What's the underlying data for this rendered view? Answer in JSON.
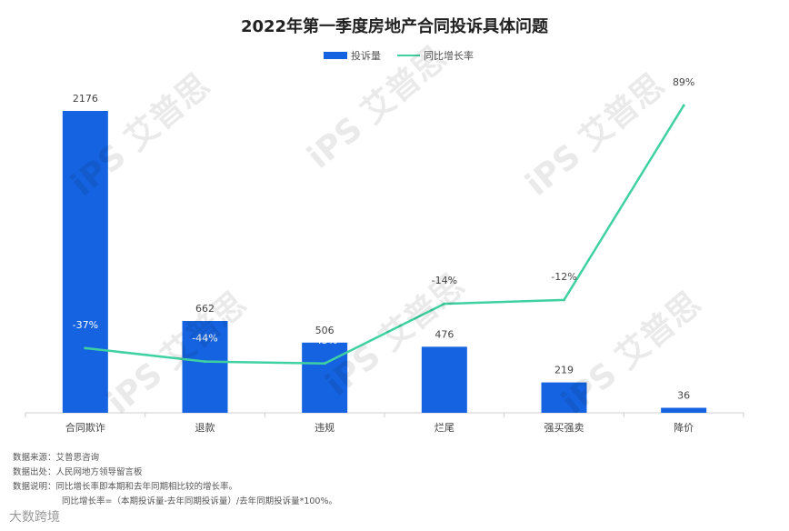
{
  "chart_data": {
    "type": "bar",
    "title": "2022年第一季度房地产合同投诉具体问题",
    "categories": [
      "合同欺诈",
      "退款",
      "违规",
      "烂尾",
      "强买强卖",
      "降价"
    ],
    "series": [
      {
        "name": "投诉量",
        "kind": "bar",
        "values": [
          2176,
          662,
          506,
          476,
          219,
          36
        ],
        "labels": [
          "2176",
          "662",
          "506",
          "476",
          "219",
          "36"
        ]
      },
      {
        "name": "同比增长率",
        "kind": "line",
        "values": [
          -37,
          -44,
          -45,
          -14,
          -12,
          89
        ],
        "labels": [
          "-37%",
          "-44%",
          "-45%",
          "-14%",
          "-12%",
          "89%"
        ]
      }
    ],
    "legend": "top-center",
    "colors": {
      "bar": "#1563e0",
      "line": "#3fd1a2"
    }
  },
  "notes": {
    "source": "数据来源：艾普思咨询",
    "origin": "数据出处：人民网地方领导留言板",
    "explain": "数据说明：同比增长率即本期和去年同期相比较的增长率。",
    "formula": "同比增长率=（本期投诉量-去年同期投诉量）/去年同期投诉量*100%。"
  },
  "watermark": {
    "text": "iPS 艾普思"
  },
  "brand": "大数跨境"
}
